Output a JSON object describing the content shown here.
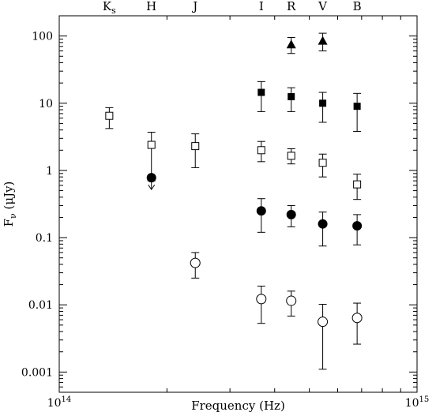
{
  "chart_data": {
    "type": "scatter",
    "title": "",
    "xlabel": "Frequency (Hz)",
    "ylabel": "F_ν (μJy)",
    "xscale": "log",
    "yscale": "log",
    "xlim": [
      100000000000000.0,
      1000000000000000.0
    ],
    "ylim": [
      0.0005,
      200
    ],
    "grid": false,
    "legend": "none",
    "x_tick_labels": [
      {
        "value": 100000000000000.0,
        "base": "10",
        "exp": "14"
      },
      {
        "value": 1000000000000000.0,
        "base": "10",
        "exp": "15"
      }
    ],
    "y_tick_labels": [
      {
        "value": 0.001,
        "label": "0.001"
      },
      {
        "value": 0.01,
        "label": "0.01"
      },
      {
        "value": 0.1,
        "label": "0.1"
      },
      {
        "value": 1,
        "label": "1"
      },
      {
        "value": 10,
        "label": "10"
      },
      {
        "value": 100,
        "label": "100"
      }
    ],
    "bands": [
      {
        "name": "K",
        "sub": "s",
        "freq": 138000000000000.0
      },
      {
        "name": "H",
        "sub": "",
        "freq": 181000000000000.0
      },
      {
        "name": "J",
        "sub": "",
        "freq": 240000000000000.0
      },
      {
        "name": "I",
        "sub": "",
        "freq": 367000000000000.0
      },
      {
        "name": "R",
        "sub": "",
        "freq": 445000000000000.0
      },
      {
        "name": "V",
        "sub": "",
        "freq": 545000000000000.0
      },
      {
        "name": "B",
        "sub": "",
        "freq": 680000000000000.0
      }
    ],
    "series": [
      {
        "marker": "filled-triangle",
        "points": [
          {
            "x": 445000000000000.0,
            "y": 75,
            "lo": 55,
            "hi": 95
          },
          {
            "x": 545000000000000.0,
            "y": 85,
            "lo": 60,
            "hi": 110
          }
        ]
      },
      {
        "marker": "filled-square",
        "points": [
          {
            "x": 367000000000000.0,
            "y": 14.5,
            "lo": 7.5,
            "hi": 21
          },
          {
            "x": 445000000000000.0,
            "y": 12.5,
            "lo": 7.5,
            "hi": 17
          },
          {
            "x": 545000000000000.0,
            "y": 10,
            "lo": 5.2,
            "hi": 14.5
          },
          {
            "x": 680000000000000.0,
            "y": 9,
            "lo": 3.8,
            "hi": 14
          }
        ]
      },
      {
        "marker": "open-square",
        "points": [
          {
            "x": 138000000000000.0,
            "y": 6.5,
            "lo": 4.2,
            "hi": 8.6
          },
          {
            "x": 181000000000000.0,
            "y": 2.4,
            "lo": 0.7,
            "hi": 3.7
          },
          {
            "x": 240000000000000.0,
            "y": 2.3,
            "lo": 1.1,
            "hi": 3.5
          },
          {
            "x": 367000000000000.0,
            "y": 2.0,
            "lo": 1.35,
            "hi": 2.7
          },
          {
            "x": 445000000000000.0,
            "y": 1.65,
            "lo": 1.25,
            "hi": 2.1
          },
          {
            "x": 545000000000000.0,
            "y": 1.3,
            "lo": 0.8,
            "hi": 1.75
          },
          {
            "x": 680000000000000.0,
            "y": 0.62,
            "lo": 0.37,
            "hi": 0.88
          }
        ]
      },
      {
        "marker": "filled-circle",
        "points": [
          {
            "x": 181000000000000.0,
            "y": 0.78,
            "upper_limit": true
          },
          {
            "x": 367000000000000.0,
            "y": 0.25,
            "lo": 0.12,
            "hi": 0.38
          },
          {
            "x": 445000000000000.0,
            "y": 0.22,
            "lo": 0.145,
            "hi": 0.3
          },
          {
            "x": 545000000000000.0,
            "y": 0.16,
            "lo": 0.075,
            "hi": 0.24
          },
          {
            "x": 680000000000000.0,
            "y": 0.15,
            "lo": 0.078,
            "hi": 0.22
          }
        ]
      },
      {
        "marker": "open-circle",
        "points": [
          {
            "x": 240000000000000.0,
            "y": 0.042,
            "lo": 0.025,
            "hi": 0.06
          },
          {
            "x": 367000000000000.0,
            "y": 0.0122,
            "lo": 0.0053,
            "hi": 0.019
          },
          {
            "x": 445000000000000.0,
            "y": 0.0115,
            "lo": 0.0068,
            "hi": 0.016
          },
          {
            "x": 545000000000000.0,
            "y": 0.0056,
            "lo": 0.0011,
            "hi": 0.0102
          },
          {
            "x": 680000000000000.0,
            "y": 0.0064,
            "lo": 0.0026,
            "hi": 0.0106
          }
        ]
      }
    ]
  }
}
